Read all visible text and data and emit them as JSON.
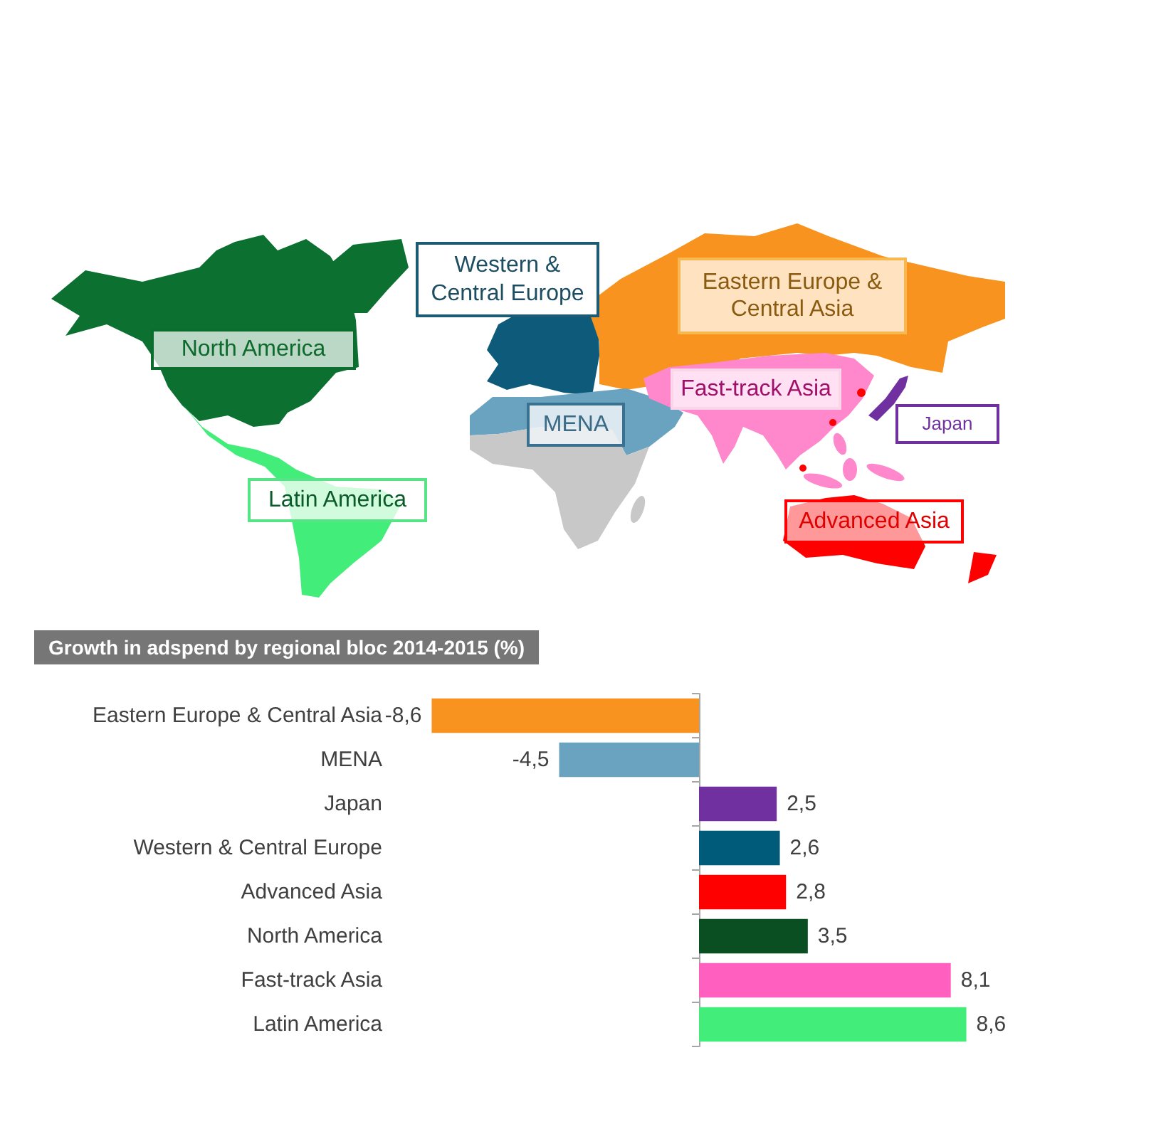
{
  "chart_data": {
    "type": "bar",
    "orientation": "horizontal",
    "title": "Growth in adspend by regional bloc 2014-2015 (%)",
    "categories": [
      "Eastern Europe & Central Asia",
      "MENA",
      "Japan",
      "Western & Central Europe",
      "Advanced Asia",
      "North America",
      "Fast-track Asia",
      "Latin America"
    ],
    "values": [
      -8.6,
      -4.5,
      2.5,
      2.6,
      2.8,
      3.5,
      8.1,
      8.6
    ],
    "colors": [
      "#f7931e",
      "#6aa3c0",
      "#7030a0",
      "#005a7a",
      "#ff0000",
      "#0a4f22",
      "#ff5fbf",
      "#43ed7a"
    ],
    "value_labels": [
      "-8,6",
      "-4,5",
      "2,5",
      "2,6",
      "2,8",
      "3,5",
      "8,1",
      "8,6"
    ],
    "annotations": [
      "North America",
      "Western & Central Europe",
      "Eastern Europe & Central Asia",
      "Fast-track Asia",
      "MENA",
      "Japan",
      "Latin America",
      "Advanced Asia"
    ],
    "tick_labels": "y"
  }
}
